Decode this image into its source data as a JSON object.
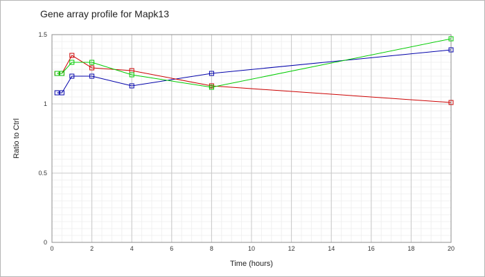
{
  "chart_data": {
    "type": "line",
    "title": "Gene array profile for Mapk13",
    "xlabel": "Time (hours)",
    "ylabel": "Ratio to Ctrl",
    "xlim": [
      0,
      20
    ],
    "ylim": [
      0,
      1.5
    ],
    "xticks": [
      0,
      2,
      4,
      6,
      8,
      10,
      12,
      14,
      16,
      18,
      20
    ],
    "yticks": [
      0,
      0.5,
      1,
      1.5
    ],
    "ytick_labels": [
      "0",
      "0.5",
      "1",
      "1.5"
    ],
    "grid": true,
    "legend": false,
    "series": [
      {
        "color": "#0000aa",
        "x": [
          0.25,
          0.5,
          1,
          2,
          4,
          8,
          20
        ],
        "y": [
          1.08,
          1.08,
          1.2,
          1.2,
          1.13,
          1.22,
          1.39
        ]
      },
      {
        "color": "#cc0000",
        "x": [
          0.25,
          0.5,
          1,
          2,
          4,
          8,
          20
        ],
        "y": [
          1.22,
          1.22,
          1.35,
          1.26,
          1.24,
          1.13,
          1.01
        ]
      },
      {
        "color": "#00cc00",
        "x": [
          0.25,
          0.5,
          1,
          2,
          4,
          8,
          20
        ],
        "y": [
          1.22,
          1.22,
          1.3,
          1.3,
          1.21,
          1.12,
          1.47
        ]
      }
    ]
  }
}
